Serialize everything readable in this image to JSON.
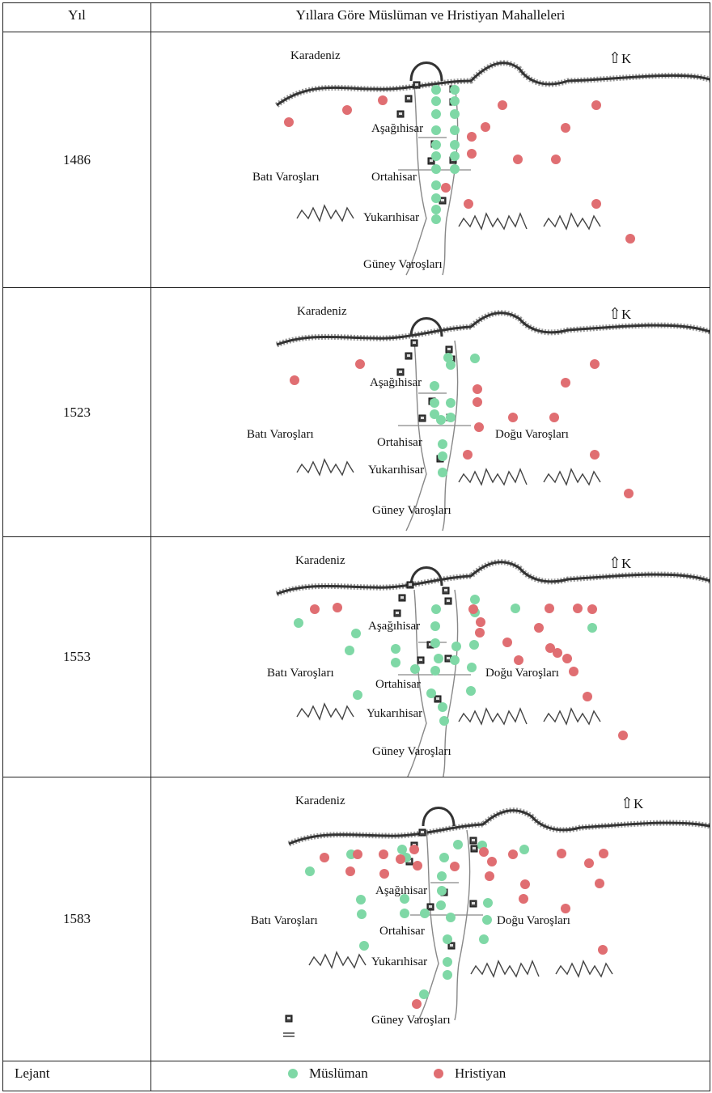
{
  "header": {
    "year_col": "Yıl",
    "title_col": "Yıllara Göre Müslüman ve Hristiyan Mahalleleri"
  },
  "colors": {
    "muslim": "#7fd8a6",
    "christian": "#e06e72"
  },
  "north_label": "K",
  "rows": [
    {
      "year": "1486",
      "labels": {
        "sea": "Karadeniz",
        "lower": "Aşağıhisar",
        "middle": "Ortahisar",
        "upper": "Yukarıhisar",
        "west": "Batı Varoşları",
        "south": "Güney Varoşları"
      }
    },
    {
      "year": "1523",
      "labels": {
        "sea": "Karadeniz",
        "lower": "Aşağıhisar",
        "middle": "Ortahisar",
        "upper": "Yukarıhisar",
        "west": "Batı Varoşları",
        "east": "Doğu Varoşları",
        "south": "Güney Varoşları"
      }
    },
    {
      "year": "1553",
      "labels": {
        "sea": "Karadeniz",
        "lower": "Aşağıhisar",
        "middle": "Ortahisar",
        "upper": "Yukarıhisar",
        "west": "Batı Varoşları",
        "east": "Doğu Varoşları",
        "south": "Güney Varoşları"
      }
    },
    {
      "year": "1583",
      "labels": {
        "sea": "Karadeniz",
        "lower": "Aşağıhisar",
        "middle": "Ortahisar",
        "upper": "Yukarıhisar",
        "west": "Batı Varoşları",
        "east": "Doğu Varoşları",
        "south": "Güney Varoşları"
      }
    }
  ],
  "legend": {
    "label": "Lejant",
    "muslim": "Müslüman",
    "christian": "Hristiyan"
  }
}
